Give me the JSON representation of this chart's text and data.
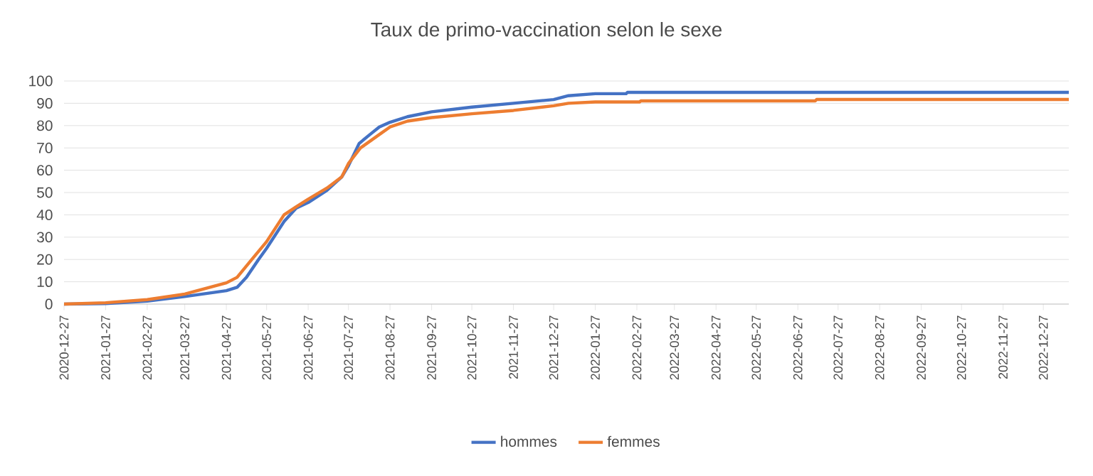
{
  "chart_data": {
    "type": "line",
    "title": "Taux de primo-vaccination selon le sexe",
    "xlim": [
      "2020-12-27",
      "2023-01-15"
    ],
    "xticks": [
      "2020-12-27",
      "2021-01-27",
      "2021-02-27",
      "2021-03-27",
      "2021-04-27",
      "2021-05-27",
      "2021-06-27",
      "2021-07-27",
      "2021-08-27",
      "2021-09-27",
      "2021-10-27",
      "2021-11-27",
      "2021-12-27",
      "2022-01-27",
      "2022-02-27",
      "2022-03-27",
      "2022-04-27",
      "2022-05-27",
      "2022-06-27",
      "2022-07-27",
      "2022-08-27",
      "2022-09-27",
      "2022-10-27",
      "2022-11-27",
      "2022-12-27"
    ],
    "ylim": [
      0,
      100
    ],
    "yticks": [
      0,
      10,
      20,
      30,
      40,
      50,
      60,
      70,
      80,
      90,
      100
    ],
    "grid": "y",
    "legend": "bottom",
    "marker": "none",
    "line_style": "solid",
    "series": [
      {
        "name": "hommes",
        "color": "#4472c4",
        "x": [
          "2020-12-27",
          "2021-01-27",
          "2021-02-27",
          "2021-03-27",
          "2021-04-27",
          "2021-05-05",
          "2021-05-12",
          "2021-05-21",
          "2021-05-27",
          "2021-06-09",
          "2021-06-18",
          "2021-06-27",
          "2021-07-11",
          "2021-07-22",
          "2021-07-27",
          "2021-08-04",
          "2021-08-12",
          "2021-08-19",
          "2021-08-27",
          "2021-09-09",
          "2021-09-27",
          "2021-10-27",
          "2021-11-27",
          "2021-12-27",
          "2022-01-07",
          "2022-01-27",
          "2022-02-19",
          "2022-02-20",
          "2023-01-15"
        ],
        "values": [
          0,
          0.2,
          1.3,
          3.4,
          6,
          7.5,
          12,
          20,
          25,
          37,
          43,
          45.5,
          51,
          57,
          62,
          72,
          76,
          79.4,
          81.5,
          84,
          86.2,
          88.3,
          90,
          91.7,
          93.4,
          94.3,
          94.3,
          94.9,
          94.9
        ]
      },
      {
        "name": "femmes",
        "color": "#ed7d31",
        "x": [
          "2020-12-27",
          "2021-01-27",
          "2021-02-27",
          "2021-03-27",
          "2021-04-27",
          "2021-05-05",
          "2021-05-16",
          "2021-05-27",
          "2021-06-09",
          "2021-06-18",
          "2021-06-27",
          "2021-07-11",
          "2021-07-22",
          "2021-07-27",
          "2021-08-05",
          "2021-08-19",
          "2021-08-27",
          "2021-09-09",
          "2021-09-27",
          "2021-10-27",
          "2021-11-27",
          "2021-12-27",
          "2022-01-07",
          "2022-01-27",
          "2022-03-01",
          "2022-03-02",
          "2022-07-10",
          "2022-07-11",
          "2023-01-15"
        ],
        "values": [
          0,
          0.6,
          2,
          4.5,
          9.5,
          12,
          20,
          28,
          40,
          43.6,
          47,
          52,
          57,
          63,
          70,
          76,
          79.4,
          82,
          83.6,
          85.3,
          86.8,
          88.9,
          90,
          90.6,
          90.6,
          91.1,
          91.1,
          91.7,
          91.7
        ]
      }
    ]
  }
}
